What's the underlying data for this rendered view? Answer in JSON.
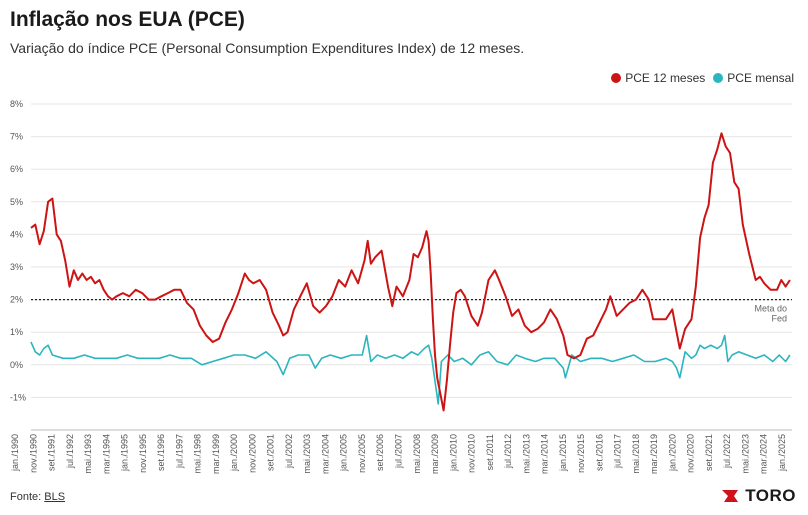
{
  "title": "Inflação nos EUA (PCE)",
  "subtitle": "Variação do índice PCE (Personal Consumption Expenditures Index) de 12 meses.",
  "source_label": "Fonte:",
  "source_name": "BLS",
  "brand": "TORO",
  "legend": [
    {
      "label": "PCE 12 meses",
      "color": "#cc1414"
    },
    {
      "label": "PCE mensal",
      "color": "#2bb5bf"
    }
  ],
  "chart_data": {
    "type": "line",
    "title": "Inflação nos EUA (PCE)",
    "ylim": [
      -2,
      8
    ],
    "xlim": [
      1990.0,
      2025.6
    ],
    "y_ticks": [
      8,
      7,
      6,
      5,
      4,
      3,
      2,
      1,
      0,
      -1
    ],
    "y_tick_labels": [
      "8%",
      "7%",
      "6%",
      "5%",
      "4%",
      "3%",
      "2%",
      "1%",
      "0%",
      "-1%"
    ],
    "x_tick_labels": [
      "jan./1990",
      "nov./1990",
      "set./1991",
      "jul./1992",
      "mai./1993",
      "mar./1994",
      "jan./1995",
      "nov./1995",
      "set./1996",
      "jul./1997",
      "mai./1998",
      "mar./1999",
      "jan./2000",
      "nov./2000",
      "set./2001",
      "jul./2002",
      "mai./2003",
      "mar./2004",
      "jan./2005",
      "nov./2005",
      "set./2006",
      "jul./2007",
      "mai./2008",
      "mar./2009",
      "jan./2010",
      "nov./2010",
      "set./2011",
      "jul./2012",
      "mai./2013",
      "mar./2014",
      "jan./2015",
      "nov./2015",
      "set./2016",
      "jul./2017",
      "mai./2018",
      "mar./2019",
      "jan./2020",
      "nov./2020",
      "set./2021",
      "jul./2022",
      "mai./2023",
      "mar./2024",
      "jan./2025"
    ],
    "reference_line": {
      "value": 2,
      "label_line1": "Meta do",
      "label_line2": "Fed"
    },
    "series": [
      {
        "name": "PCE 12 meses",
        "color": "#cc1414",
        "x": [
          1990.0,
          1990.2,
          1990.4,
          1990.6,
          1990.8,
          1991.0,
          1991.2,
          1991.4,
          1991.6,
          1991.8,
          1992.0,
          1992.2,
          1992.4,
          1992.6,
          1992.8,
          1993.0,
          1993.2,
          1993.4,
          1993.6,
          1993.8,
          1994.0,
          1994.3,
          1994.6,
          1994.9,
          1995.2,
          1995.5,
          1995.8,
          1996.1,
          1996.4,
          1996.7,
          1997.0,
          1997.3,
          1997.6,
          1997.9,
          1998.2,
          1998.5,
          1998.8,
          1999.1,
          1999.4,
          1999.7,
          2000.0,
          2000.2,
          2000.4,
          2000.7,
          2001.0,
          2001.3,
          2001.6,
          2001.8,
          2002.0,
          2002.3,
          2002.6,
          2002.9,
          2003.2,
          2003.5,
          2003.8,
          2004.1,
          2004.4,
          2004.7,
          2005.0,
          2005.3,
          2005.6,
          2005.75,
          2005.9,
          2006.1,
          2006.4,
          2006.7,
          2006.9,
          2007.1,
          2007.4,
          2007.7,
          2007.9,
          2008.1,
          2008.3,
          2008.5,
          2008.6,
          2008.7,
          2008.8,
          2008.9,
          2009.0,
          2009.15,
          2009.3,
          2009.45,
          2009.6,
          2009.75,
          2009.9,
          2010.1,
          2010.3,
          2010.6,
          2010.9,
          2011.1,
          2011.4,
          2011.7,
          2011.9,
          2012.2,
          2012.5,
          2012.8,
          2013.1,
          2013.4,
          2013.7,
          2014.0,
          2014.3,
          2014.6,
          2014.9,
          2015.1,
          2015.4,
          2015.7,
          2016.0,
          2016.3,
          2016.6,
          2016.9,
          2017.1,
          2017.4,
          2017.7,
          2018.0,
          2018.3,
          2018.6,
          2018.9,
          2019.1,
          2019.4,
          2019.7,
          2020.0,
          2020.2,
          2020.35,
          2020.6,
          2020.9,
          2021.1,
          2021.3,
          2021.5,
          2021.7,
          2021.9,
          2022.1,
          2022.3,
          2022.5,
          2022.7,
          2022.9,
          2023.1,
          2023.3,
          2023.6,
          2023.9,
          2024.1,
          2024.3,
          2024.6,
          2024.9,
          2025.1,
          2025.3,
          2025.5
        ],
        "values": [
          4.2,
          4.3,
          3.7,
          4.1,
          5.0,
          5.1,
          4.0,
          3.8,
          3.2,
          2.4,
          2.9,
          2.6,
          2.8,
          2.6,
          2.7,
          2.5,
          2.6,
          2.3,
          2.1,
          2.0,
          2.1,
          2.2,
          2.1,
          2.3,
          2.2,
          2.0,
          2.0,
          2.1,
          2.2,
          2.3,
          2.3,
          1.9,
          1.7,
          1.2,
          0.9,
          0.7,
          0.8,
          1.3,
          1.7,
          2.2,
          2.8,
          2.6,
          2.5,
          2.6,
          2.3,
          1.6,
          1.2,
          0.9,
          1.0,
          1.7,
          2.1,
          2.5,
          1.8,
          1.6,
          1.8,
          2.1,
          2.6,
          2.4,
          2.9,
          2.5,
          3.2,
          3.8,
          3.1,
          3.3,
          3.5,
          2.4,
          1.8,
          2.4,
          2.1,
          2.6,
          3.4,
          3.3,
          3.6,
          4.1,
          3.8,
          2.8,
          1.4,
          0.3,
          -0.4,
          -0.9,
          -1.4,
          -0.5,
          0.6,
          1.6,
          2.2,
          2.3,
          2.1,
          1.5,
          1.2,
          1.6,
          2.6,
          2.9,
          2.6,
          2.1,
          1.5,
          1.7,
          1.2,
          1.0,
          1.1,
          1.3,
          1.7,
          1.4,
          0.9,
          0.3,
          0.2,
          0.3,
          0.8,
          0.9,
          1.3,
          1.7,
          2.1,
          1.5,
          1.7,
          1.9,
          2.0,
          2.3,
          2.0,
          1.4,
          1.4,
          1.4,
          1.7,
          1.0,
          0.5,
          1.1,
          1.4,
          2.4,
          3.9,
          4.5,
          4.9,
          6.2,
          6.6,
          7.1,
          6.7,
          6.5,
          5.6,
          5.4,
          4.3,
          3.4,
          2.6,
          2.7,
          2.5,
          2.3,
          2.3,
          2.6,
          2.4,
          2.6
        ]
      },
      {
        "name": "PCE mensal",
        "color": "#2bb5bf",
        "x": [
          1990.0,
          1990.2,
          1990.4,
          1990.6,
          1990.8,
          1991.0,
          1991.5,
          1992.0,
          1992.5,
          1993.0,
          1993.5,
          1994.0,
          1994.5,
          1995.0,
          1995.5,
          1996.0,
          1996.5,
          1997.0,
          1997.5,
          1998.0,
          1998.5,
          1999.0,
          1999.5,
          2000.0,
          2000.5,
          2001.0,
          2001.5,
          2001.8,
          2002.1,
          2002.5,
          2003.0,
          2003.3,
          2003.6,
          2004.0,
          2004.5,
          2005.0,
          2005.5,
          2005.7,
          2005.9,
          2006.2,
          2006.6,
          2007.0,
          2007.4,
          2007.8,
          2008.1,
          2008.4,
          2008.6,
          2008.75,
          2008.9,
          2009.05,
          2009.2,
          2009.5,
          2009.8,
          2010.2,
          2010.6,
          2011.0,
          2011.4,
          2011.8,
          2012.3,
          2012.7,
          2013.1,
          2013.6,
          2014.0,
          2014.5,
          2014.9,
          2015.0,
          2015.3,
          2015.7,
          2016.2,
          2016.7,
          2017.2,
          2017.7,
          2018.2,
          2018.7,
          2019.2,
          2019.7,
          2020.0,
          2020.2,
          2020.35,
          2020.6,
          2020.9,
          2021.1,
          2021.3,
          2021.5,
          2021.8,
          2022.1,
          2022.3,
          2022.45,
          2022.6,
          2022.8,
          2023.1,
          2023.5,
          2023.9,
          2024.3,
          2024.7,
          2025.0,
          2025.3,
          2025.5
        ],
        "values": [
          0.7,
          0.4,
          0.3,
          0.5,
          0.6,
          0.3,
          0.2,
          0.2,
          0.3,
          0.2,
          0.2,
          0.2,
          0.3,
          0.2,
          0.2,
          0.2,
          0.3,
          0.2,
          0.2,
          0.0,
          0.1,
          0.2,
          0.3,
          0.3,
          0.2,
          0.4,
          0.1,
          -0.3,
          0.2,
          0.3,
          0.3,
          -0.1,
          0.2,
          0.3,
          0.2,
          0.3,
          0.3,
          0.9,
          0.1,
          0.3,
          0.2,
          0.3,
          0.2,
          0.4,
          0.3,
          0.5,
          0.6,
          0.2,
          -0.5,
          -1.2,
          0.1,
          0.3,
          0.1,
          0.2,
          0.0,
          0.3,
          0.4,
          0.1,
          0.0,
          0.3,
          0.2,
          0.1,
          0.2,
          0.2,
          -0.1,
          -0.4,
          0.3,
          0.1,
          0.2,
          0.2,
          0.1,
          0.2,
          0.3,
          0.1,
          0.1,
          0.2,
          0.1,
          -0.1,
          -0.4,
          0.4,
          0.2,
          0.3,
          0.6,
          0.5,
          0.6,
          0.5,
          0.6,
          0.9,
          0.1,
          0.3,
          0.4,
          0.3,
          0.2,
          0.3,
          0.1,
          0.3,
          0.1,
          0.3
        ]
      }
    ]
  }
}
